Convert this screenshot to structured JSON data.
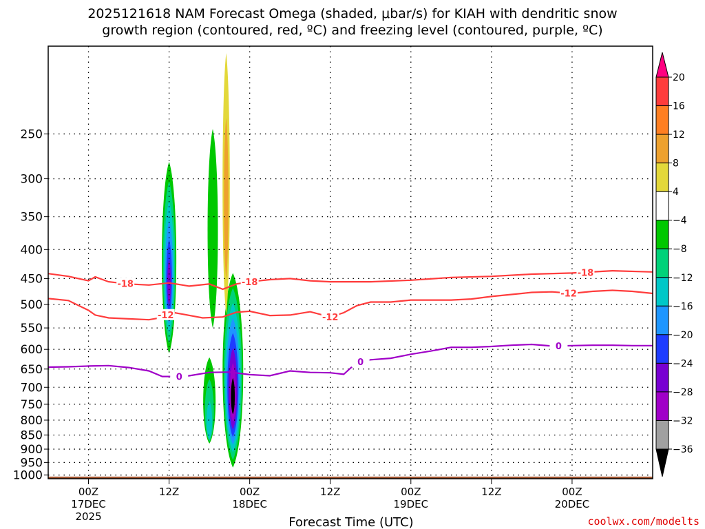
{
  "chart_data": {
    "type": "time-height-cross-section",
    "title_line1": "2025121618 NAM Forecast Omega (shaded, μbar/s) for KIAH with dendritic snow",
    "title_line2": "growth region (contoured, red, ºC) and freezing level (contoured, purple, ºC)",
    "xlabel": "Forecast Time (UTC)",
    "credit": "coolwx.com/modelts",
    "x_range_hours": [
      -6,
      84
    ],
    "y_range_hpa": [
      1015,
      175
    ],
    "pressure_levels": [
      250,
      300,
      350,
      400,
      450,
      500,
      550,
      600,
      650,
      700,
      750,
      800,
      850,
      900,
      950,
      1000
    ],
    "x_ticks": [
      {
        "hour": 0,
        "line1": "00Z",
        "line2": "17DEC",
        "line3": "2025"
      },
      {
        "hour": 12,
        "line1": "12Z",
        "line2": "",
        "line3": ""
      },
      {
        "hour": 24,
        "line1": "00Z",
        "line2": "18DEC",
        "line3": ""
      },
      {
        "hour": 36,
        "line1": "12Z",
        "line2": "",
        "line3": ""
      },
      {
        "hour": 48,
        "line1": "00Z",
        "line2": "19DEC",
        "line3": ""
      },
      {
        "hour": 60,
        "line1": "12Z",
        "line2": "",
        "line3": ""
      },
      {
        "hour": 72,
        "line1": "00Z",
        "line2": "20DEC",
        "line3": ""
      }
    ],
    "colorbar": {
      "labels": [
        "20",
        "16",
        "12",
        "8",
        "4",
        "−4",
        "−8",
        "−12",
        "−16",
        "−20",
        "−24",
        "−28",
        "−32",
        "−36"
      ],
      "colors": [
        "#ff0080",
        "#ff3c3c",
        "#ff7f22",
        "#eda12e",
        "#e3d83a",
        "#ffffff",
        "#00c800",
        "#00d279",
        "#00c8c8",
        "#1e96ff",
        "#1e3cff",
        "#7800d2",
        "#a000c8",
        "#a0a0a0",
        "#000000"
      ]
    },
    "series": [
      {
        "name": "-18 °C",
        "color": "#ff3c3c",
        "label": "-18",
        "label_hours": [
          5.5,
          24,
          74
        ],
        "points": [
          [
            -6,
            441
          ],
          [
            -3,
            446
          ],
          [
            0,
            454
          ],
          [
            1,
            447
          ],
          [
            3,
            456
          ],
          [
            6,
            460
          ],
          [
            9,
            462
          ],
          [
            12,
            458
          ],
          [
            15,
            464
          ],
          [
            18,
            460
          ],
          [
            20,
            470
          ],
          [
            22,
            460
          ],
          [
            24,
            456
          ],
          [
            27,
            452
          ],
          [
            30,
            450
          ],
          [
            33,
            454
          ],
          [
            36,
            456
          ],
          [
            42,
            456
          ],
          [
            48,
            453
          ],
          [
            54,
            448
          ],
          [
            60,
            446
          ],
          [
            66,
            442
          ],
          [
            72,
            440
          ],
          [
            78,
            436
          ],
          [
            84,
            438
          ]
        ]
      },
      {
        "name": "-12 °C",
        "color": "#ff3c3c",
        "label": "-12",
        "label_hours": [
          11.5,
          36,
          71.5
        ],
        "points": [
          [
            -6,
            488
          ],
          [
            -3,
            492
          ],
          [
            0,
            512
          ],
          [
            1,
            522
          ],
          [
            3,
            528
          ],
          [
            6,
            530
          ],
          [
            9,
            532
          ],
          [
            11,
            527
          ],
          [
            12,
            515
          ],
          [
            14,
            520
          ],
          [
            17,
            528
          ],
          [
            20,
            526
          ],
          [
            22,
            516
          ],
          [
            24,
            514
          ],
          [
            27,
            523
          ],
          [
            30,
            522
          ],
          [
            33,
            515
          ],
          [
            36,
            526
          ],
          [
            38,
            517
          ],
          [
            40,
            502
          ],
          [
            42,
            495
          ],
          [
            45,
            495
          ],
          [
            48,
            491
          ],
          [
            51,
            491
          ],
          [
            54,
            491
          ],
          [
            57,
            489
          ],
          [
            60,
            484
          ],
          [
            63,
            480
          ],
          [
            66,
            476
          ],
          [
            69,
            475
          ],
          [
            72,
            478
          ],
          [
            75,
            474
          ],
          [
            78,
            472
          ],
          [
            81,
            474
          ],
          [
            84,
            478
          ]
        ]
      },
      {
        "name": "0 °C",
        "color": "#a000c8",
        "label": "0",
        "label_hours": [
          13.5,
          40.5,
          70
        ],
        "points": [
          [
            -6,
            645
          ],
          [
            -3,
            644
          ],
          [
            0,
            642
          ],
          [
            3,
            641
          ],
          [
            6,
            646
          ],
          [
            9,
            655
          ],
          [
            11,
            670
          ],
          [
            13,
            670
          ],
          [
            15,
            668
          ],
          [
            18,
            659
          ],
          [
            21,
            658
          ],
          [
            24,
            665
          ],
          [
            27,
            668
          ],
          [
            30,
            655
          ],
          [
            33,
            659
          ],
          [
            36,
            660
          ],
          [
            38,
            664
          ],
          [
            40,
            632
          ],
          [
            42,
            626
          ],
          [
            45,
            622
          ],
          [
            48,
            612
          ],
          [
            51,
            604
          ],
          [
            54,
            595
          ],
          [
            57,
            595
          ],
          [
            60,
            593
          ],
          [
            63,
            590
          ],
          [
            66,
            588
          ],
          [
            69,
            592
          ],
          [
            72,
            591
          ],
          [
            75,
            590
          ],
          [
            78,
            590
          ],
          [
            81,
            591
          ],
          [
            84,
            591
          ]
        ]
      }
    ],
    "omega_features": [
      {
        "name": "green band 12Z 17DEC",
        "hour": 12,
        "p_top": 280,
        "p_bot": 610,
        "half_width_h": 1.4,
        "bins": [
          -8,
          -12,
          -16,
          -20,
          -24,
          -28
        ]
      },
      {
        "name": "strong core 18DEC",
        "hour": 21.5,
        "p_top": 440,
        "p_bot": 970,
        "half_width_h": 2.0,
        "bins": [
          -8,
          -12,
          -16,
          -20,
          -24,
          -28,
          -32,
          -36
        ]
      },
      {
        "name": "upper green strip",
        "hour": 18.5,
        "p_top": 245,
        "p_bot": 550,
        "half_width_h": 1.0,
        "bins": [
          -8
        ]
      },
      {
        "name": "lower shoulder",
        "hour": 18,
        "p_top": 620,
        "p_bot": 880,
        "half_width_h": 1.2,
        "bins": [
          -8,
          -12,
          -16
        ]
      },
      {
        "name": "positive column",
        "hour": 20.5,
        "p_top": 180,
        "p_bot": 520,
        "half_width_h": 0.7,
        "bins": [
          4,
          8
        ]
      }
    ]
  }
}
